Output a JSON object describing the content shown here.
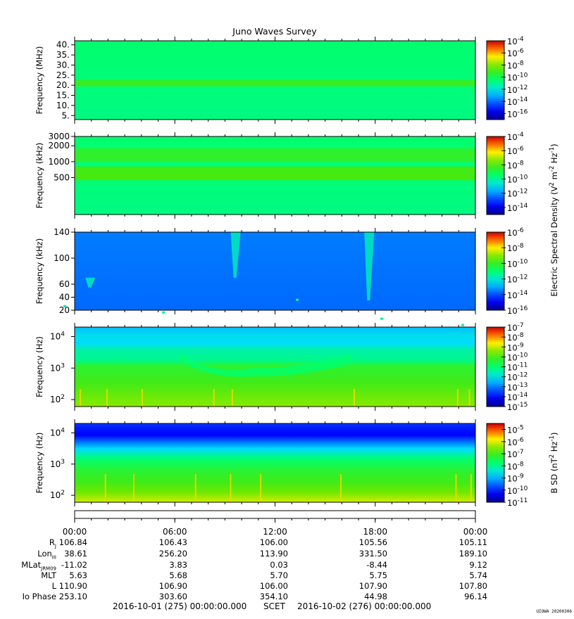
{
  "title": "Juno Waves Survey",
  "chart_data": [
    {
      "type": "heatmap",
      "name": "panel-1",
      "ylabel": "Frequency (MHz)",
      "yscale": "linear",
      "ylim": [
        3,
        42
      ],
      "yticks": [
        {
          "v": 40,
          "t": "40."
        },
        {
          "v": 35,
          "t": "35."
        },
        {
          "v": 30,
          "t": "30."
        },
        {
          "v": 25,
          "t": "25."
        },
        {
          "v": 20,
          "t": "20."
        },
        {
          "v": 15,
          "t": "15."
        },
        {
          "v": 10,
          "t": "10."
        },
        {
          "v": 5,
          "t": "5."
        }
      ],
      "colorbar": {
        "quantity": "electric",
        "range_exp": [
          -17,
          -4
        ],
        "labels": [
          -4,
          -6,
          -8,
          -10,
          -12,
          -14,
          -16
        ]
      },
      "features": [
        {
          "kind": "band",
          "y": 21,
          "width": 1.5,
          "intensity": 0.62
        }
      ],
      "background": 0.5
    },
    {
      "type": "heatmap",
      "name": "panel-2",
      "ylabel": "Frequency (kHz)",
      "yscale": "log",
      "ylim": [
        100,
        3000
      ],
      "yticks": [
        {
          "v": 3000,
          "t": "3000"
        },
        {
          "v": 2000,
          "t": "2000"
        },
        {
          "v": 1000,
          "t": "1000"
        },
        {
          "v": 500,
          "t": "500"
        }
      ],
      "colorbar": {
        "quantity": "electric",
        "range_exp": [
          -15,
          -4
        ],
        "labels": [
          -4,
          -6,
          -8,
          -10,
          -12,
          -14
        ]
      },
      "features": [
        {
          "kind": "band",
          "y": 1350,
          "width": 0.12,
          "intensity": 0.6
        },
        {
          "kind": "band",
          "y": 600,
          "width": 0.13,
          "intensity": 0.64
        }
      ],
      "background": 0.5
    },
    {
      "type": "heatmap",
      "name": "panel-3",
      "ylabel": "Frequency (kHz)",
      "yscale": "linear",
      "ylim": [
        20,
        140
      ],
      "yticks": [
        {
          "v": 140,
          "t": "140"
        },
        {
          "v": 100,
          "t": "100"
        },
        {
          "v": 60,
          "t": "60"
        },
        {
          "v": 40,
          "t": "40"
        },
        {
          "v": 20,
          "t": "20"
        }
      ],
      "colorbar": {
        "quantity": "electric",
        "range_exp": [
          -16,
          -6
        ],
        "labels": [
          -6,
          -8,
          -10,
          -12,
          -14,
          -16
        ]
      },
      "features": [
        {
          "kind": "burst",
          "t": 9.6,
          "y0": 70,
          "y1": 140
        },
        {
          "kind": "burst",
          "t": 17.6,
          "y0": 35,
          "y1": 140
        },
        {
          "kind": "burst",
          "t": 0.9,
          "y0": 55,
          "y1": 70
        }
      ],
      "background": 0.25
    },
    {
      "type": "heatmap",
      "name": "panel-4",
      "ylabel": "Frequency (Hz)",
      "yscale": "log",
      "ylim": [
        60,
        20000
      ],
      "yticks": [
        {
          "v": 10000,
          "t": "10",
          "e": "4"
        },
        {
          "v": 1000,
          "t": "10",
          "e": "3"
        },
        {
          "v": 100,
          "t": "10",
          "e": "2"
        }
      ],
      "colorbar": {
        "quantity": "electric",
        "range_exp": [
          -15,
          -7
        ],
        "labels": [
          -7,
          -8,
          -9,
          -10,
          -11,
          -12,
          -13,
          -14,
          -15
        ]
      },
      "background": 0.45
    },
    {
      "type": "heatmap",
      "name": "panel-5",
      "ylabel": "Frequency (Hz)",
      "yscale": "log",
      "ylim": [
        60,
        20000
      ],
      "yticks": [
        {
          "v": 10000,
          "t": "10",
          "e": "4"
        },
        {
          "v": 1000,
          "t": "10",
          "e": "3"
        },
        {
          "v": 100,
          "t": "10",
          "e": "2"
        }
      ],
      "colorbar": {
        "quantity": "magnetic",
        "range_exp": [
          -11,
          -4.5
        ],
        "labels": [
          -5,
          -6,
          -7,
          -8,
          -9,
          -10,
          -11
        ]
      },
      "background": 0.4
    }
  ],
  "colorbar_titles": {
    "electric": {
      "pre": "Electric Spectral Density (V",
      "sup1": "2",
      "mid": " m",
      "sup2": "-2",
      "mid2": " Hz",
      "sup3": "-1",
      "post": ")"
    },
    "magnetic": {
      "pre": "B SD (nT",
      "sup1": "2",
      "mid": " Hz",
      "sup2": "-1",
      "post": ")"
    }
  },
  "colorbar_base": "10",
  "time_axis": {
    "ticks": [
      "00:00",
      "06:00",
      "12:00",
      "18:00",
      "00:00"
    ]
  },
  "ephemeris": [
    {
      "label": "R",
      "sub": "J",
      "values": [
        "106.84",
        "106.43",
        "106.00",
        "105.56",
        "105.11"
      ]
    },
    {
      "label": "Lon",
      "sub": "III",
      "values": [
        "38.61",
        "256.20",
        "113.90",
        "331.50",
        "189.10"
      ]
    },
    {
      "label": "MLat",
      "sub": "JRM09",
      "values": [
        "-11.02",
        "3.83",
        "0.03",
        "-8.44",
        "9.12"
      ]
    },
    {
      "label": "MLT",
      "sub": "",
      "values": [
        "5.63",
        "5.68",
        "5.70",
        "5.75",
        "5.74"
      ]
    },
    {
      "label": "L",
      "sub": "",
      "values": [
        "110.90",
        "106.90",
        "106.00",
        "107.90",
        "107.80"
      ]
    },
    {
      "label": "Io Phase",
      "sub": "",
      "values": [
        "253.10",
        "303.60",
        "354.10",
        "44.98",
        "96.14"
      ]
    }
  ],
  "footer": {
    "start": "2016-10-01 (275) 00:00:00.000",
    "scet": "SCET",
    "end": "2016-10-02 (276) 00:00:00.000"
  },
  "credit": "UIOWA 20200306"
}
